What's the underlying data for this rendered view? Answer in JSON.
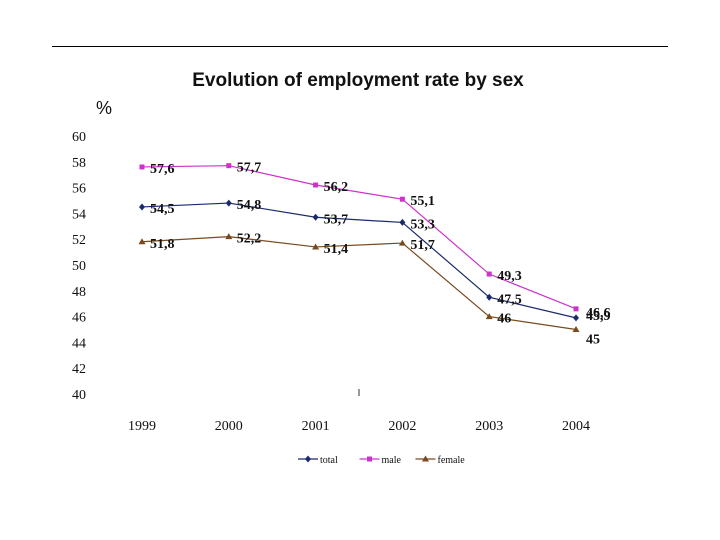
{
  "chart_data": {
    "type": "line",
    "title": "Evolution of employment rate by sex",
    "ylabel": "%",
    "xlabel": "",
    "categories": [
      "1999",
      "2000",
      "2001",
      "2002",
      "2003",
      "2004"
    ],
    "ylim": [
      40,
      60
    ],
    "yticks": [
      "60",
      "58",
      "56",
      "54",
      "52",
      "50",
      "48",
      "46",
      "44",
      "42",
      "40"
    ],
    "grid": false,
    "legend_position": "bottom",
    "series": [
      {
        "name": "total",
        "color": "#1a2a6c",
        "marker": "diamond",
        "values": [
          54.5,
          54.8,
          53.7,
          53.3,
          47.5,
          45.9
        ],
        "labels": [
          "54,5",
          "54,8",
          "53,7",
          "53,3",
          "47,5",
          "45,9"
        ]
      },
      {
        "name": "male",
        "color": "#cc33cc",
        "marker": "square",
        "values": [
          57.6,
          57.7,
          56.2,
          55.1,
          49.3,
          46.6
        ],
        "labels": [
          "57,6",
          "57,7",
          "56,2",
          "55,1",
          "49,3",
          "46,6"
        ]
      },
      {
        "name": "female",
        "color": "#7a4a1e",
        "marker": "triangle",
        "values": [
          51.8,
          52.2,
          51.4,
          51.7,
          46,
          45
        ],
        "labels": [
          "51,8",
          "52,2",
          "51,4",
          "51,7",
          "46",
          "45"
        ]
      }
    ]
  }
}
